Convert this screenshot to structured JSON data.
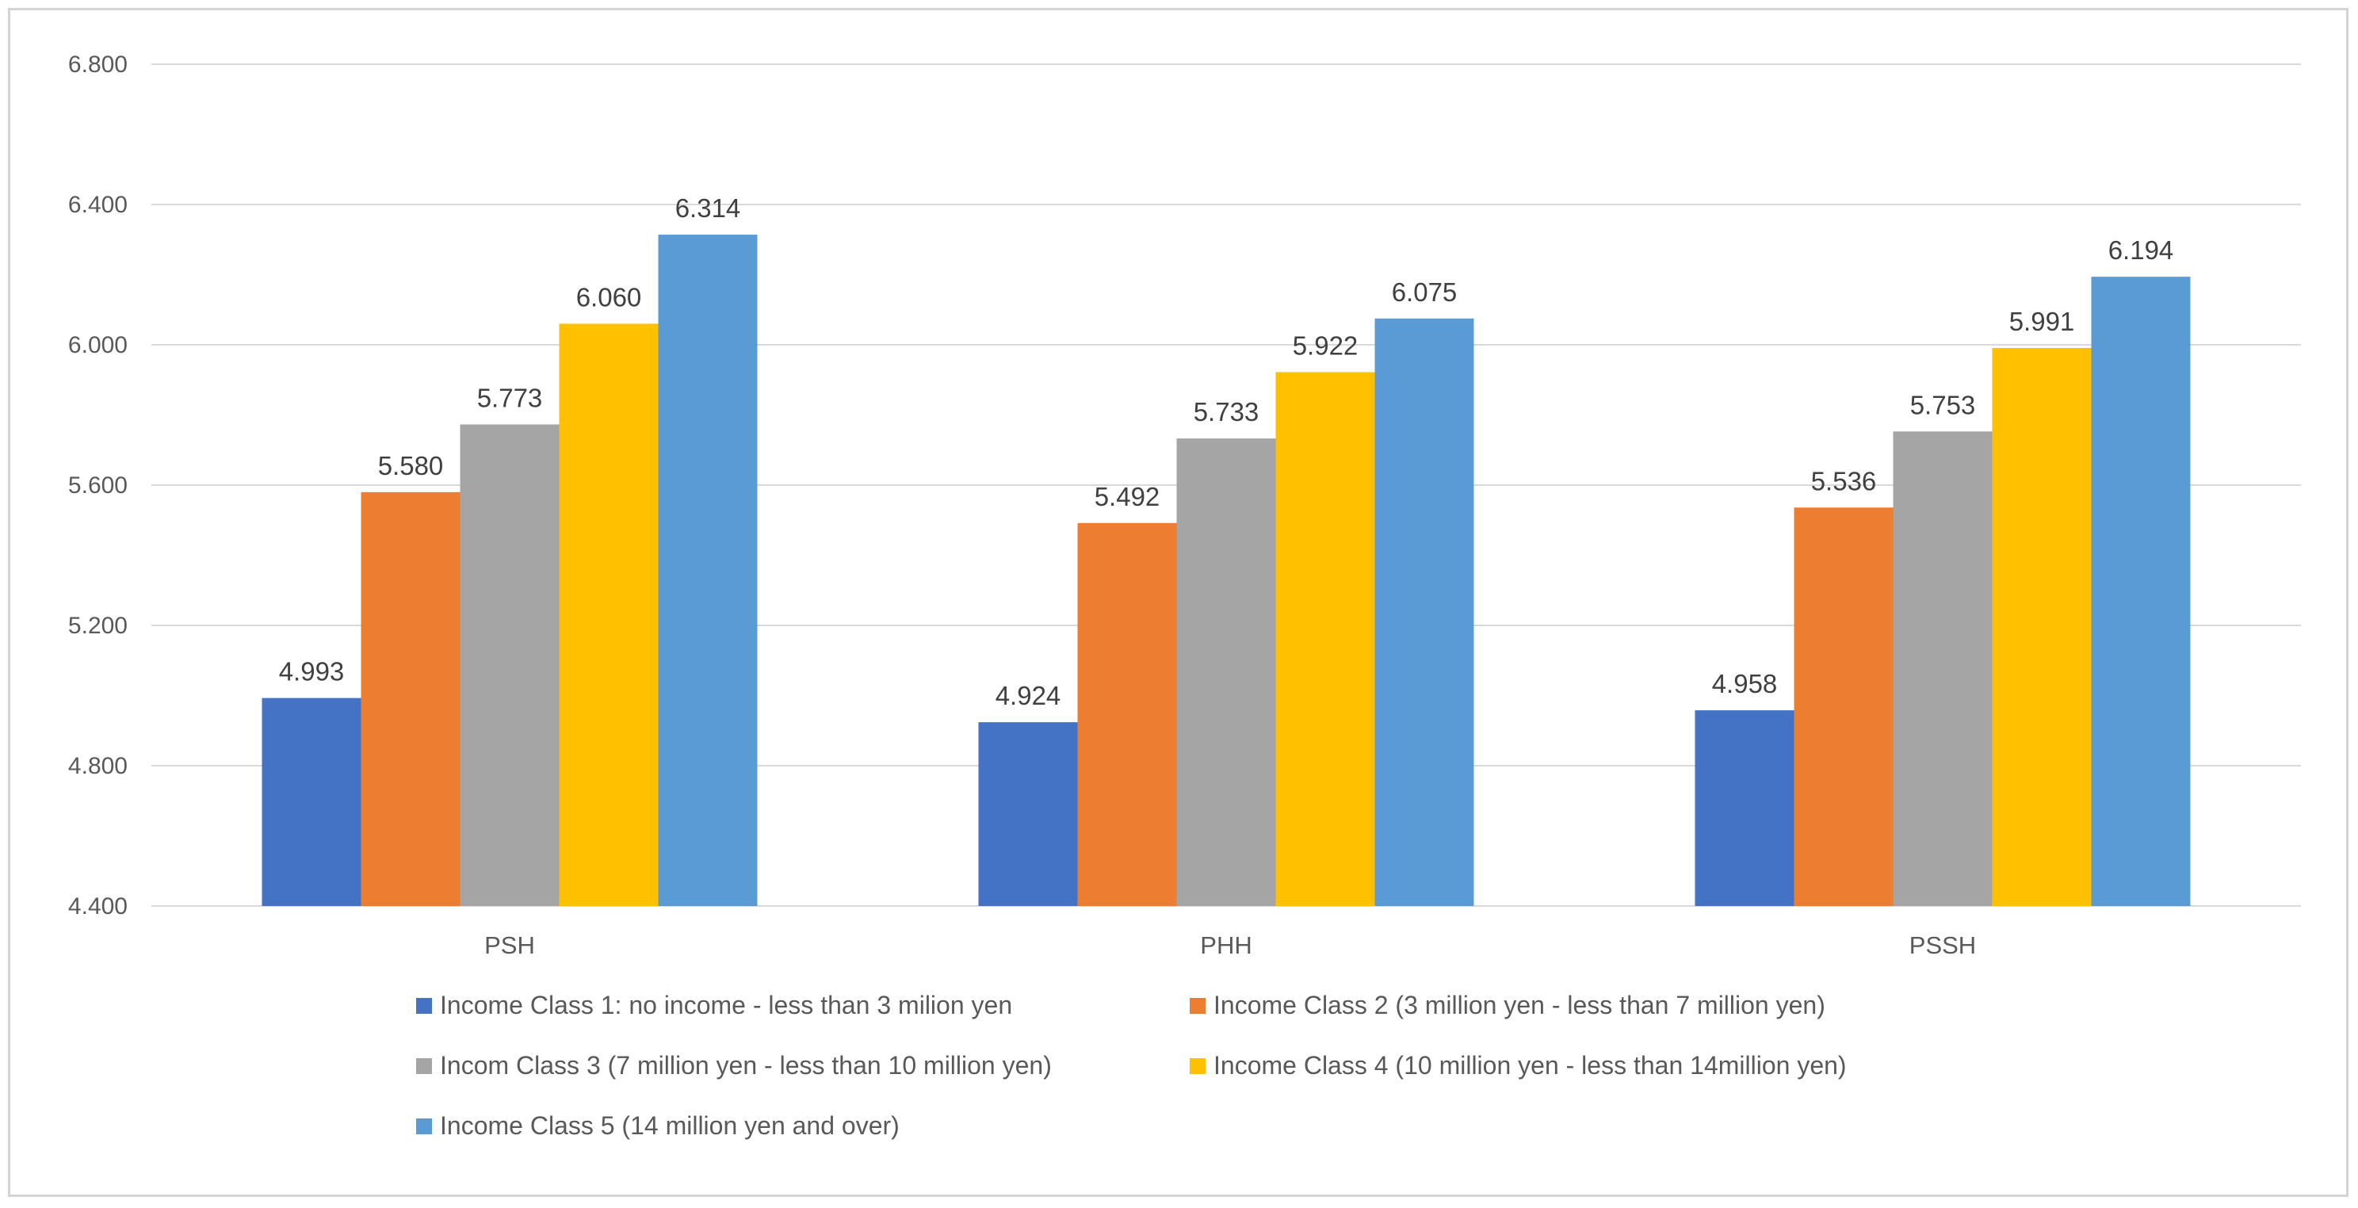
{
  "chart_data": {
    "type": "bar",
    "title": "",
    "xlabel": "",
    "ylabel": "",
    "ylim": [
      4.4,
      6.8
    ],
    "yticks": [
      "4.400",
      "4.800",
      "5.200",
      "5.600",
      "6.000",
      "6.400",
      "6.800"
    ],
    "ytick_values": [
      4.4,
      4.8,
      5.2,
      5.6,
      6.0,
      6.4,
      6.8
    ],
    "grid": true,
    "legend_position": "bottom",
    "categories": [
      "PSH",
      "PHH",
      "PSSH"
    ],
    "series": [
      {
        "name": "Income Class 1: no income - less than 3 milion yen",
        "color": "#4472C4",
        "values": [
          4.993,
          4.924,
          4.958
        ],
        "labels": [
          "4.993",
          "4.924",
          "4.958"
        ]
      },
      {
        "name": "Income Class 2 (3 million yen - less than 7 million yen)",
        "color": "#ED7D31",
        "values": [
          5.58,
          5.492,
          5.536
        ],
        "labels": [
          "5.580",
          "5.492",
          "5.536"
        ]
      },
      {
        "name": "Incom Class 3 (7 million yen - less than 10 million yen)",
        "color": "#A5A5A5",
        "values": [
          5.773,
          5.733,
          5.753
        ],
        "labels": [
          "5.773",
          "5.733",
          "5.753"
        ]
      },
      {
        "name": "Income Class 4 (10 million yen - less than 14million yen)",
        "color": "#FFC000",
        "values": [
          6.06,
          5.922,
          5.991
        ],
        "labels": [
          "6.060",
          "5.922",
          "5.991"
        ]
      },
      {
        "name": "Income Class 5 (14 million yen and over)",
        "color": "#5B9BD5",
        "values": [
          6.314,
          6.075,
          6.194
        ],
        "labels": [
          "6.314",
          "6.075",
          "6.194"
        ]
      }
    ]
  }
}
